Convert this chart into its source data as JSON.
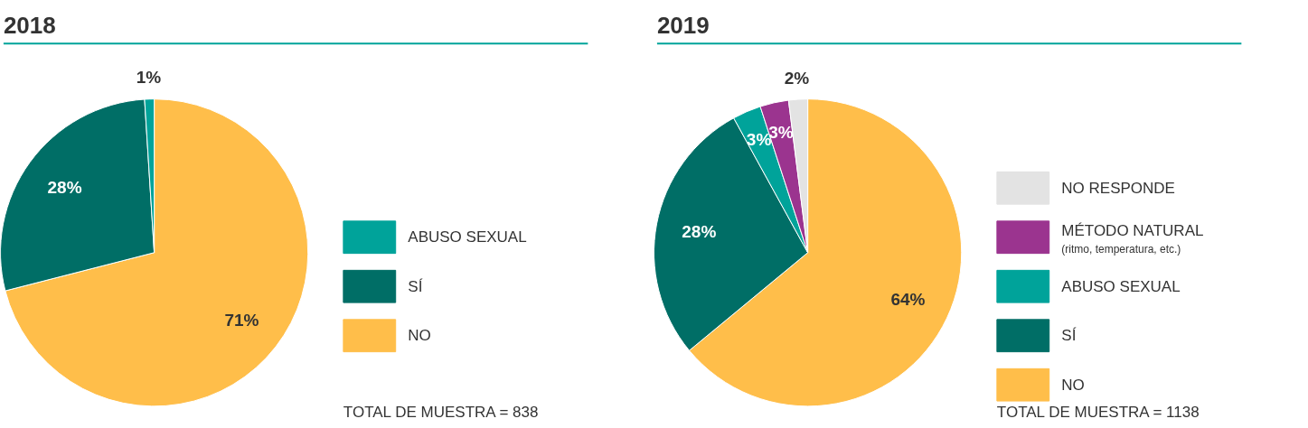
{
  "chart_data": [
    {
      "type": "pie",
      "title": "2018",
      "categories": [
        "NO",
        "SÍ",
        "ABUSO SEXUAL"
      ],
      "values": [
        71,
        28,
        1
      ],
      "colors": [
        "#ffbe4a",
        "#006e66",
        "#00a39a"
      ],
      "value_labels": [
        "71%",
        "28%",
        "1%"
      ],
      "legend": "right",
      "annotations": [
        "TOTAL DE MUESTRA = 838"
      ]
    },
    {
      "type": "pie",
      "title": "2019",
      "categories": [
        "NO",
        "SÍ",
        "ABUSO SEXUAL",
        "MÉTODO NATURAL\n(ritmo, temperatura, etc.)",
        "NO RESPONDE"
      ],
      "values": [
        64,
        28,
        3,
        3,
        2
      ],
      "colors": [
        "#ffbe4a",
        "#006e66",
        "#00a39a",
        "#9b348f",
        "#e3e3e3"
      ],
      "value_labels": [
        "64%",
        "28%",
        "3%",
        "3%",
        "2%"
      ],
      "legend": "right",
      "annotations": [
        "TOTAL DE MUESTRA = 1138"
      ]
    }
  ]
}
